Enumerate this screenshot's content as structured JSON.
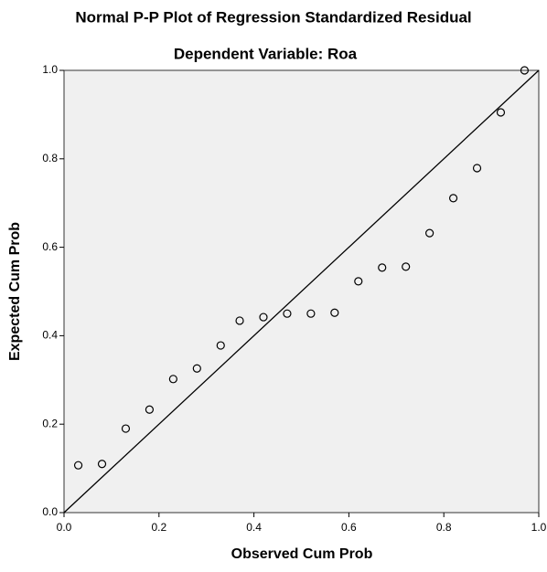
{
  "chart_data": {
    "type": "scatter",
    "title": "Normal P-P Plot of Regression Standardized Residual",
    "subtitle": "Dependent Variable: Roa",
    "x_label": "Observed Cum Prob",
    "y_label": "Expected Cum Prob",
    "x": [
      0.03,
      0.08,
      0.13,
      0.18,
      0.23,
      0.28,
      0.33,
      0.37,
      0.42,
      0.47,
      0.52,
      0.57,
      0.62,
      0.67,
      0.72,
      0.77,
      0.82,
      0.87,
      0.92,
      0.97
    ],
    "values": [
      0.107,
      0.11,
      0.19,
      0.233,
      0.302,
      0.326,
      0.378,
      0.434,
      0.442,
      0.45,
      0.45,
      0.452,
      0.523,
      0.554,
      0.556,
      0.632,
      0.711,
      0.779,
      0.905,
      1.0
    ],
    "color": "#000000",
    "reference_line": true,
    "xlim": [
      0,
      1
    ],
    "ylim": [
      0,
      1
    ],
    "xticks": [
      {
        "value": 0,
        "label": "0.0"
      },
      0.2,
      0.4,
      0.6,
      0.8,
      {
        "value": 1,
        "label": "1.0"
      }
    ],
    "yticks": [
      {
        "value": 0,
        "label": "0.0"
      },
      0.2,
      0.4,
      0.6,
      0.8,
      {
        "value": 1,
        "label": "1.0"
      }
    ]
  }
}
